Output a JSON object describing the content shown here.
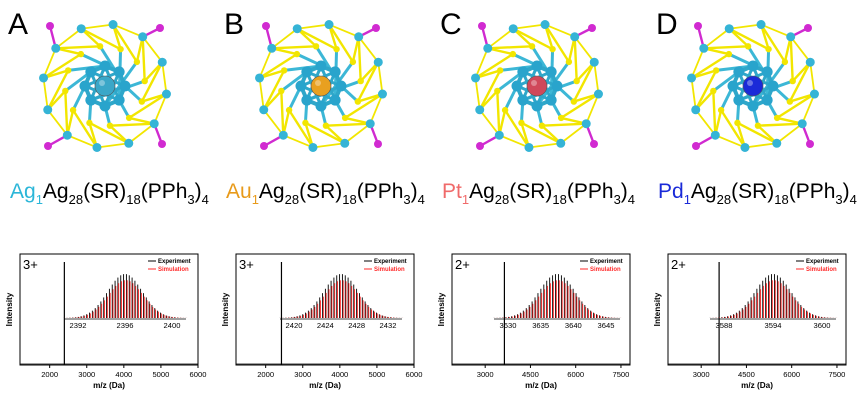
{
  "panels": [
    {
      "letter": "A",
      "formula": {
        "dopant": "Ag",
        "dopant_sub": "1",
        "dopant_color": "#2bb6d8",
        "rest1": "Ag",
        "sub1": "28",
        "rest2": "(SR)",
        "sub2": "18",
        "rest3": "(PPh",
        "sub3": "3",
        "rest4": ")",
        "sub4": "4"
      },
      "core_color": "#3aa7c8",
      "charge": "3+",
      "legend": [
        "Experiment",
        "Simulation"
      ],
      "ylabel": "Intensity",
      "xlabel": "m/z (Da)",
      "inset_ticks": [
        "2392",
        "2396",
        "2400"
      ],
      "main_ticks": [
        "2000",
        "3000",
        "4000",
        "5000",
        "6000"
      ]
    },
    {
      "letter": "B",
      "formula": {
        "dopant": "Au",
        "dopant_sub": "1",
        "dopant_color": "#e89a1a",
        "rest1": "Ag",
        "sub1": "28",
        "rest2": "(SR)",
        "sub2": "18",
        "rest3": "(PPh",
        "sub3": "3",
        "rest4": ")",
        "sub4": "4"
      },
      "core_color": "#e8a020",
      "charge": "3+",
      "legend": [
        "Experiment",
        "Simulation"
      ],
      "ylabel": "Intensity",
      "xlabel": "m/z (Da)",
      "inset_ticks": [
        "2420",
        "2424",
        "2428",
        "2432"
      ],
      "main_ticks": [
        "2000",
        "3000",
        "4000",
        "5000",
        "6000"
      ]
    },
    {
      "letter": "C",
      "formula": {
        "dopant": "Pt",
        "dopant_sub": "1",
        "dopant_color": "#f06a6a",
        "rest1": "Ag",
        "sub1": "28",
        "rest2": "(SR)",
        "sub2": "18",
        "rest3": "(PPh",
        "sub3": "3",
        "rest4": ")",
        "sub4": "4"
      },
      "core_color": "#d0485a",
      "charge": "2+",
      "legend": [
        "Experiment",
        "Simulation"
      ],
      "ylabel": "Intensity",
      "xlabel": "m/z (Da)",
      "inset_ticks": [
        "3630",
        "3635",
        "3640",
        "3645"
      ],
      "main_ticks": [
        "3000",
        "4500",
        "6000",
        "7500"
      ]
    },
    {
      "letter": "D",
      "formula": {
        "dopant": "Pd",
        "dopant_sub": "1",
        "dopant_color": "#1a2ad8",
        "rest1": "Ag",
        "sub1": "28",
        "rest2": "(SR)",
        "sub2": "18",
        "rest3": "(PPh",
        "sub3": "3",
        "rest4": ")",
        "sub4": "4"
      },
      "core_color": "#1a2ad8",
      "charge": "2+",
      "legend": [
        "Experiment",
        "Simulation"
      ],
      "ylabel": "Intensity",
      "xlabel": "m/z (Da)",
      "inset_ticks": [
        "3588",
        "3594",
        "3600"
      ],
      "main_ticks": [
        "3000",
        "4500",
        "6000",
        "7500"
      ]
    }
  ],
  "chart_data": [
    {
      "type": "line",
      "title": "",
      "xlabel": "m/z (Da)",
      "ylabel": "Intensity",
      "xlim": [
        1200,
        6000
      ],
      "peak_mz": 2396,
      "inset_xlim": [
        2390,
        2402
      ],
      "series": [
        {
          "name": "Experiment",
          "color": "#000000"
        },
        {
          "name": "Simulation",
          "color": "#ff0000"
        }
      ]
    },
    {
      "type": "line",
      "title": "",
      "xlabel": "m/z (Da)",
      "ylabel": "Intensity",
      "xlim": [
        1200,
        6000
      ],
      "peak_mz": 2426,
      "inset_xlim": [
        2418,
        2434
      ],
      "series": [
        {
          "name": "Experiment",
          "color": "#000000"
        },
        {
          "name": "Simulation",
          "color": "#ff0000"
        }
      ]
    },
    {
      "type": "line",
      "title": "",
      "xlabel": "m/z (Da)",
      "ylabel": "Intensity",
      "xlim": [
        1900,
        7800
      ],
      "peak_mz": 3637,
      "inset_xlim": [
        3627,
        3648
      ],
      "series": [
        {
          "name": "Experiment",
          "color": "#000000"
        },
        {
          "name": "Simulation",
          "color": "#ff0000"
        }
      ]
    },
    {
      "type": "line",
      "title": "",
      "xlabel": "m/z (Da)",
      "ylabel": "Intensity",
      "xlim": [
        1900,
        7800
      ],
      "peak_mz": 3594,
      "inset_xlim": [
        3584,
        3604
      ],
      "series": [
        {
          "name": "Experiment",
          "color": "#000000"
        },
        {
          "name": "Simulation",
          "color": "#ff0000"
        }
      ]
    }
  ]
}
